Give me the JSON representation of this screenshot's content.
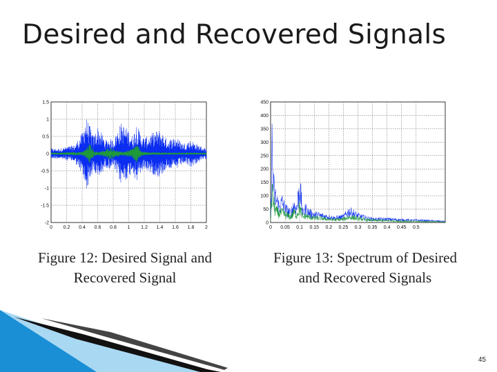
{
  "slide": {
    "title": "Desired and Recovered Signals",
    "page_number": "45",
    "colors": {
      "accent_blue": "#0a2df0",
      "accent_green": "#1f9a3a",
      "decor_blue": "#1a8fd6"
    }
  },
  "figures": [
    {
      "caption": "Figure 12: Desired Signal and Recovered Signal"
    },
    {
      "caption": "Figure 13: Spectrum of Desired and Recovered Signals"
    }
  ],
  "chart_data": [
    {
      "type": "line",
      "title": "",
      "xlabel": "",
      "ylabel": "",
      "xlim": [
        0,
        2
      ],
      "ylim": [
        -2,
        1.5
      ],
      "x_ticks": [
        "0",
        "0.2",
        "0.4",
        "0.6",
        "0.8",
        "1",
        "1.2",
        "1.4",
        "1.6",
        "1.8",
        "2"
      ],
      "y_ticks": [
        "1.5",
        "1",
        "0.5",
        "0",
        "-0.5",
        "-1",
        "-1.5",
        "-2"
      ],
      "grid": true,
      "series": [
        {
          "color": "#0a2df0",
          "x": [
            0,
            0.1,
            0.2,
            0.3,
            0.4,
            0.45,
            0.5,
            0.55,
            0.6,
            0.7,
            0.75,
            0.8,
            0.9,
            1.0,
            1.05,
            1.1,
            1.15,
            1.2,
            1.3,
            1.4,
            1.5,
            1.6,
            1.7,
            1.8,
            1.9,
            2.0
          ],
          "envelope": [
            0.15,
            0.15,
            0.2,
            0.25,
            0.6,
            1.1,
            0.8,
            0.5,
            0.8,
            0.4,
            0.45,
            0.4,
            0.9,
            0.7,
            0.5,
            0.9,
            0.6,
            0.45,
            0.6,
            0.7,
            0.4,
            0.5,
            0.3,
            0.4,
            0.25,
            0.15
          ]
        },
        {
          "color": "#1f9a3a",
          "x": [
            0,
            0.1,
            0.2,
            0.3,
            0.4,
            0.45,
            0.5,
            0.55,
            0.6,
            0.7,
            0.75,
            0.8,
            0.9,
            1.0,
            1.05,
            1.1,
            1.15,
            1.2,
            1.3,
            1.4,
            1.5,
            1.6,
            1.7,
            1.8,
            1.9,
            2.0
          ],
          "envelope": [
            0.03,
            0.03,
            0.04,
            0.05,
            0.05,
            0.15,
            0.3,
            0.1,
            0.05,
            0.1,
            0.2,
            0.15,
            0.05,
            0.1,
            0.15,
            0.3,
            0.1,
            0.05,
            0.04,
            0.04,
            0.03,
            0.03,
            0.03,
            0.03,
            0.03,
            0.03
          ]
        }
      ]
    },
    {
      "type": "line",
      "title": "",
      "xlabel": "",
      "ylabel": "",
      "xlim": [
        0,
        0.6
      ],
      "ylim": [
        0,
        450
      ],
      "x_ticks": [
        "0",
        "0.05",
        "0.1",
        "0.15",
        "0.2",
        "0.25",
        "0.3",
        "0.35",
        "0.4",
        "0.45",
        "0.5"
      ],
      "y_ticks": [
        "450",
        "400",
        "350",
        "300",
        "250",
        "200",
        "150",
        "100",
        "50",
        "0"
      ],
      "grid": true,
      "series": [
        {
          "color": "#0a2df0",
          "x": [
            0,
            0.005,
            0.01,
            0.015,
            0.02,
            0.03,
            0.04,
            0.05,
            0.06,
            0.07,
            0.08,
            0.09,
            0.1,
            0.11,
            0.12,
            0.13,
            0.15,
            0.18,
            0.2,
            0.22,
            0.25,
            0.27,
            0.3,
            0.33,
            0.35,
            0.4,
            0.45,
            0.5,
            0.55,
            0.6
          ],
          "y": [
            20,
            330,
            160,
            120,
            100,
            70,
            90,
            60,
            50,
            40,
            80,
            60,
            170,
            40,
            60,
            45,
            35,
            30,
            25,
            20,
            25,
            50,
            30,
            20,
            15,
            15,
            12,
            10,
            8,
            5
          ]
        },
        {
          "color": "#1f9a3a",
          "x": [
            0,
            0.005,
            0.01,
            0.015,
            0.02,
            0.03,
            0.04,
            0.05,
            0.06,
            0.07,
            0.08,
            0.09,
            0.1,
            0.11,
            0.12,
            0.13,
            0.15,
            0.18,
            0.2,
            0.22,
            0.25,
            0.27,
            0.3,
            0.33,
            0.35,
            0.4,
            0.45,
            0.5,
            0.55,
            0.6
          ],
          "y": [
            10,
            140,
            90,
            60,
            50,
            40,
            45,
            35,
            30,
            25,
            45,
            35,
            70,
            25,
            30,
            25,
            20,
            18,
            15,
            12,
            15,
            25,
            18,
            12,
            10,
            8,
            6,
            5,
            4,
            3
          ]
        }
      ]
    }
  ]
}
